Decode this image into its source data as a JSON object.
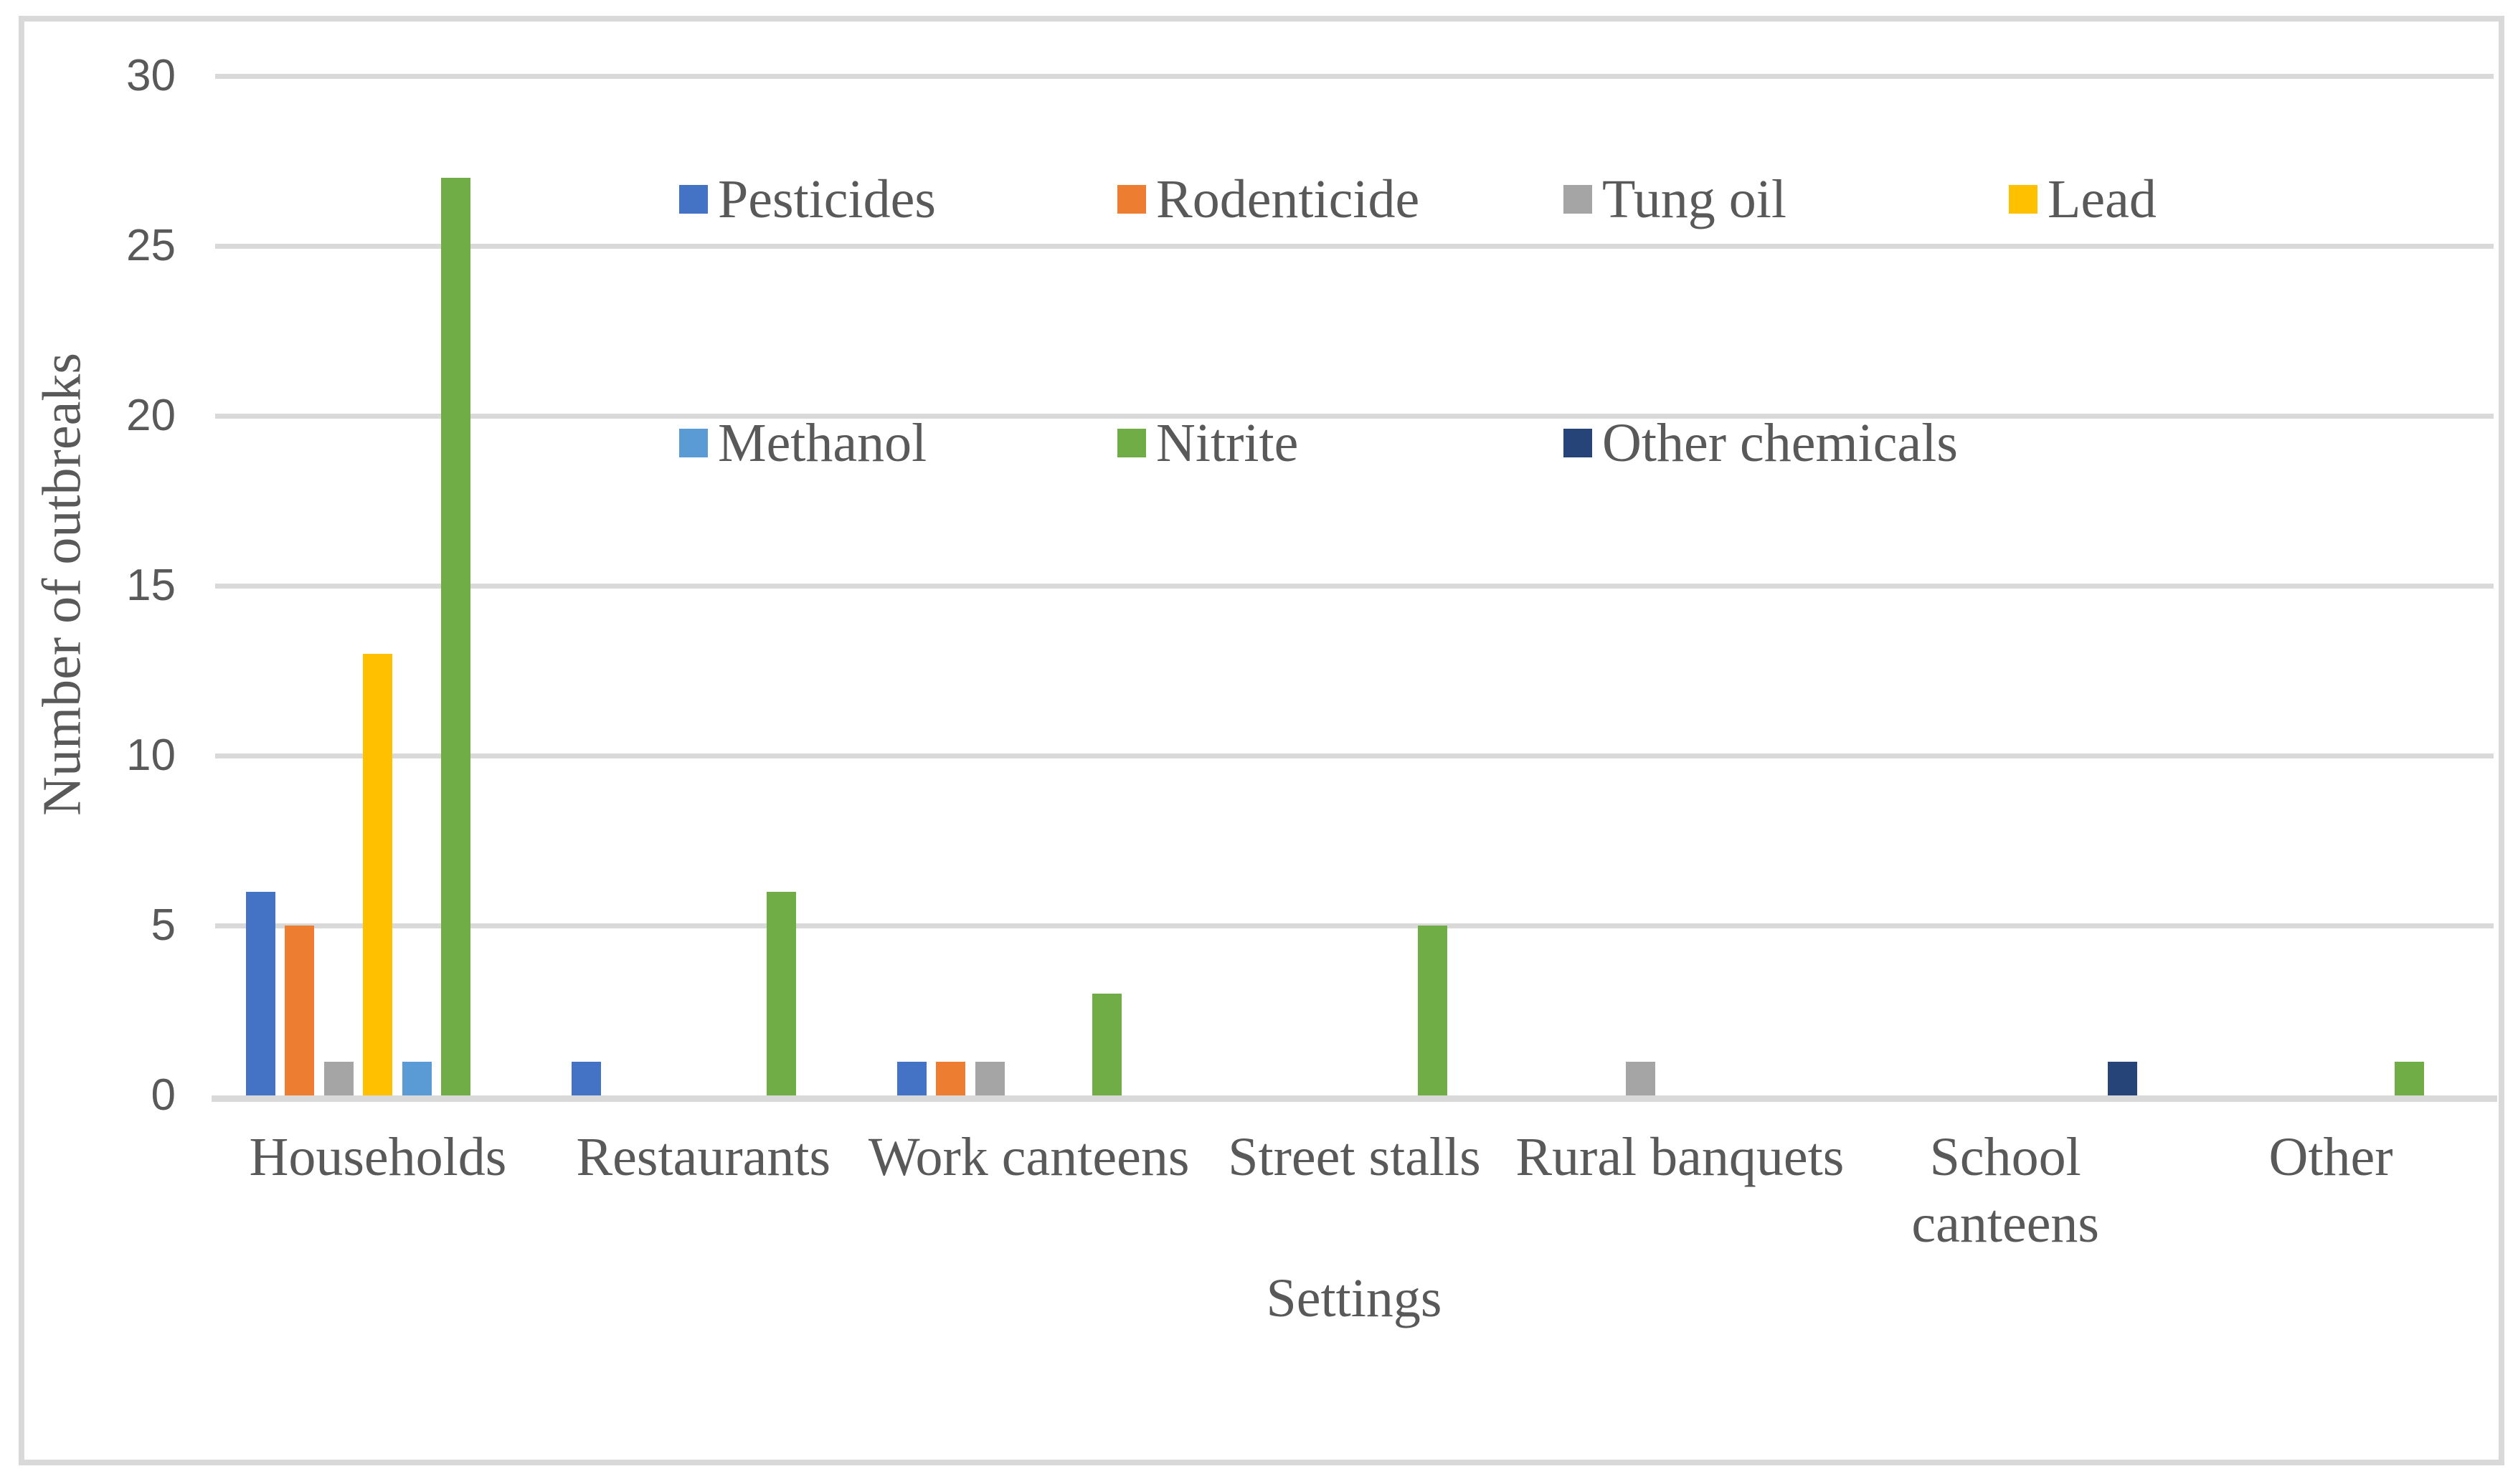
{
  "colors": {
    "frame_border": "#D9D9D9",
    "gridline": "#D9D9D9",
    "axis_line": "#D9D9D9",
    "text": "#595959",
    "background": "#FFFFFF"
  },
  "axes": {
    "x_title": "Settings",
    "y_title": "Number of outbreaks",
    "y_tick_labels": [
      "0",
      "5",
      "10",
      "15",
      "20",
      "25",
      "30"
    ]
  },
  "legend": {
    "rows": [
      [
        "Pesticides",
        "Rodenticide",
        "Tung oil",
        "Lead"
      ],
      [
        "Methanol",
        "Nitrite",
        "Other chemicals"
      ]
    ]
  },
  "chart_data": {
    "type": "bar",
    "title": "",
    "xlabel": "Settings",
    "ylabel": "Number of outbreaks",
    "ylim": [
      0,
      30
    ],
    "ytick_interval": 5,
    "yticks": [
      0,
      5,
      10,
      15,
      20,
      25,
      30
    ],
    "grid": true,
    "legend_position": "inside-top, two rows of swatches",
    "categories": [
      "Households",
      "Restaurants",
      "Work canteens",
      "Street stalls",
      "Rural banquets",
      "School canteens",
      "Other"
    ],
    "categories_display": [
      "Households",
      "Restaurants",
      "Work canteens",
      "Street stalls",
      "Rural banquets",
      "School\ncanteens",
      "Other"
    ],
    "series": [
      {
        "name": "Pesticides",
        "color": "#4472C4",
        "values": [
          6,
          1,
          1,
          0,
          0,
          0,
          0
        ]
      },
      {
        "name": "Rodenticide",
        "color": "#ED7D31",
        "values": [
          5,
          0,
          1,
          0,
          0,
          0,
          0
        ]
      },
      {
        "name": "Tung oil",
        "color": "#A5A5A5",
        "values": [
          1,
          0,
          1,
          0,
          1,
          0,
          0
        ]
      },
      {
        "name": "Lead",
        "color": "#FFC000",
        "values": [
          13,
          0,
          0,
          0,
          0,
          0,
          0
        ]
      },
      {
        "name": "Methanol",
        "color": "#5B9BD5",
        "values": [
          1,
          0,
          0,
          0,
          0,
          0,
          0
        ]
      },
      {
        "name": "Nitrite",
        "color": "#70AD47",
        "values": [
          27,
          6,
          3,
          5,
          0,
          0,
          1
        ]
      },
      {
        "name": "Other chemicals",
        "color": "#264478",
        "values": [
          0,
          0,
          0,
          0,
          0,
          1,
          0
        ]
      }
    ]
  }
}
